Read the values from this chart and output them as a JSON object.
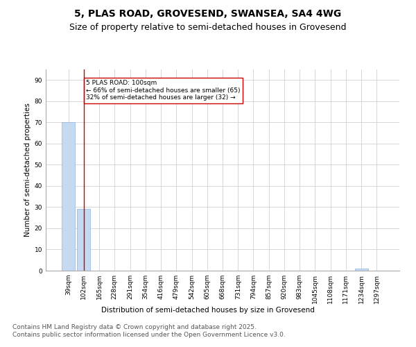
{
  "title1": "5, PLAS ROAD, GROVESEND, SWANSEA, SA4 4WG",
  "title2": "Size of property relative to semi-detached houses in Grovesend",
  "xlabel": "Distribution of semi-detached houses by size in Grovesend",
  "ylabel": "Number of semi-detached properties",
  "categories": [
    "39sqm",
    "102sqm",
    "165sqm",
    "228sqm",
    "291sqm",
    "354sqm",
    "416sqm",
    "479sqm",
    "542sqm",
    "605sqm",
    "668sqm",
    "731sqm",
    "794sqm",
    "857sqm",
    "920sqm",
    "983sqm",
    "1045sqm",
    "1108sqm",
    "1171sqm",
    "1234sqm",
    "1297sqm"
  ],
  "values": [
    70,
    29,
    0,
    0,
    0,
    0,
    0,
    0,
    0,
    0,
    0,
    0,
    0,
    0,
    0,
    0,
    0,
    0,
    0,
    1,
    0
  ],
  "bar_color": "#c5d9f1",
  "bar_edge_color": "#8db4e2",
  "highlight_index": 1,
  "highlight_line_color": "#cc0000",
  "annotation_text": "5 PLAS ROAD: 100sqm\n← 66% of semi-detached houses are smaller (65)\n32% of semi-detached houses are larger (32) →",
  "annotation_box_color": "#ffffff",
  "annotation_box_edge_color": "#cc0000",
  "ylim": [
    0,
    95
  ],
  "yticks": [
    0,
    10,
    20,
    30,
    40,
    50,
    60,
    70,
    80,
    90
  ],
  "grid_color": "#c8c8c8",
  "background_color": "#ffffff",
  "footer": "Contains HM Land Registry data © Crown copyright and database right 2025.\nContains public sector information licensed under the Open Government Licence v3.0.",
  "title_fontsize": 10,
  "subtitle_fontsize": 9,
  "axis_label_fontsize": 7.5,
  "tick_fontsize": 6.5,
  "footer_fontsize": 6.5
}
